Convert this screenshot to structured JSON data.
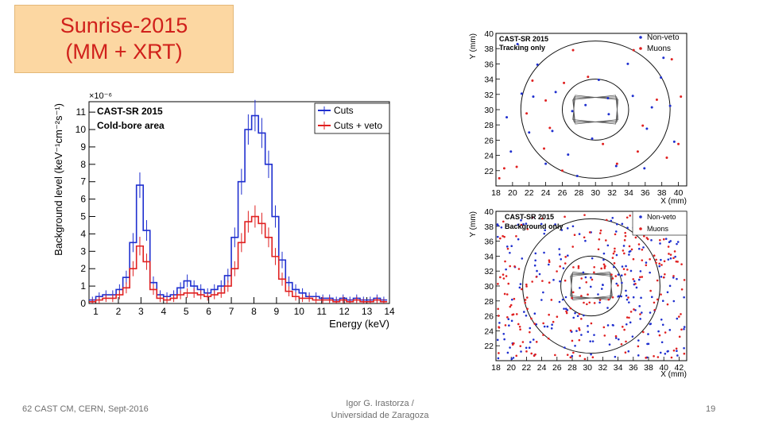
{
  "slide": {
    "title_line1": "Sunrise-2015",
    "title_line2": "(MM + XRT)",
    "footer_left": "62 CAST CM, CERN, Sept-2016",
    "footer_center_line1": "Igor G. Irastorza /",
    "footer_center_line2": "Universidad de Zaragoza",
    "page_number": "19"
  },
  "chart_data": [
    {
      "type": "line",
      "title": "CAST-SR 2015",
      "subtitle": "Cold-bore area",
      "xlabel": "Energy (keV)",
      "ylabel": "Background level (keV⁻¹cm⁻²s⁻¹)",
      "y_multiplier": "×10⁻⁶",
      "xlim": [
        0.7,
        14
      ],
      "ylim": [
        0,
        11.6
      ],
      "xticks": [
        1,
        2,
        3,
        4,
        5,
        6,
        7,
        8,
        9,
        10,
        11,
        12,
        13,
        14
      ],
      "yticks": [
        0,
        1,
        2,
        3,
        4,
        5,
        6,
        7,
        8,
        9,
        10,
        11
      ],
      "legend": [
        "Cuts",
        "Cuts + veto"
      ],
      "legend_position": "top-right",
      "colors": {
        "Cuts": "#1f2fcf",
        "Cuts + veto": "#e02020"
      },
      "x": [
        0.85,
        1.15,
        1.45,
        1.75,
        2.05,
        2.35,
        2.65,
        2.95,
        3.25,
        3.55,
        3.85,
        4.15,
        4.45,
        4.75,
        5.05,
        5.35,
        5.65,
        5.95,
        6.25,
        6.55,
        6.85,
        7.15,
        7.45,
        7.75,
        8.05,
        8.35,
        8.65,
        8.95,
        9.25,
        9.55,
        9.85,
        10.15,
        10.45,
        10.75,
        11.05,
        11.35,
        11.65,
        11.95,
        12.25,
        12.55,
        12.85,
        13.15,
        13.45,
        13.75
      ],
      "series": [
        {
          "name": "Cuts",
          "values": [
            0.2,
            0.4,
            0.5,
            0.5,
            0.8,
            1.5,
            3.5,
            6.8,
            4.2,
            1.2,
            0.5,
            0.4,
            0.5,
            0.9,
            1.3,
            1.0,
            0.8,
            0.6,
            0.8,
            1.0,
            1.6,
            3.8,
            7.0,
            10.0,
            10.8,
            9.8,
            8.0,
            5.0,
            2.5,
            1.2,
            0.8,
            0.6,
            0.4,
            0.4,
            0.3,
            0.3,
            0.2,
            0.3,
            0.2,
            0.3,
            0.2,
            0.2,
            0.3,
            0.2
          ]
        },
        {
          "name": "Cuts + veto",
          "values": [
            0.1,
            0.2,
            0.3,
            0.3,
            0.5,
            0.9,
            2.0,
            3.3,
            2.4,
            0.8,
            0.3,
            0.2,
            0.3,
            0.5,
            0.6,
            0.6,
            0.5,
            0.4,
            0.5,
            0.6,
            1.0,
            2.0,
            3.5,
            4.7,
            5.0,
            4.6,
            3.8,
            2.7,
            1.4,
            0.7,
            0.4,
            0.3,
            0.3,
            0.2,
            0.2,
            0.2,
            0.1,
            0.2,
            0.1,
            0.2,
            0.1,
            0.1,
            0.2,
            0.1
          ]
        }
      ]
    },
    {
      "type": "scatter",
      "title": "CAST-SR 2015",
      "subtitle": "Tracking only",
      "xlabel": "X (mm)",
      "ylabel": "Y (mm)",
      "xlim": [
        18,
        41
      ],
      "ylim": [
        20,
        40
      ],
      "xticks": [
        18,
        20,
        22,
        24,
        26,
        28,
        30,
        32,
        34,
        36,
        38,
        40
      ],
      "yticks": [
        22,
        24,
        26,
        28,
        30,
        32,
        34,
        36,
        38,
        40
      ],
      "legend": [
        "Non-veto",
        "Muons"
      ],
      "legend_position": "top-right",
      "colors": {
        "Non-veto": "#1f2fcf",
        "Muons": "#e02020"
      },
      "circles": [
        {
          "cx": 30,
          "cy": 30,
          "r": 4
        },
        {
          "cx": 30,
          "cy": 30,
          "r": 9
        }
      ],
      "series": [
        {
          "name": "Non-veto",
          "points": [
            [
              25.2,
              32.3
            ],
            [
              34.5,
              31.8
            ],
            [
              27.2,
              29.8
            ],
            [
              28.8,
              30.6
            ],
            [
              31.6,
              29.4
            ],
            [
              36.2,
              27.5
            ],
            [
              24.8,
              27.2
            ],
            [
              22.5,
              31.7
            ],
            [
              37.9,
              34.2
            ],
            [
              19.8,
              24.5
            ],
            [
              20.6,
              38.6
            ],
            [
              38.2,
              36.8
            ],
            [
              32.5,
              22.6
            ],
            [
              29.6,
              26.2
            ],
            [
              21.1,
              32.1
            ],
            [
              26.7,
              24.1
            ],
            [
              35.9,
              22.3
            ],
            [
              23.0,
              35.9
            ],
            [
              33.9,
              36.0
            ],
            [
              30.4,
              33.9
            ],
            [
              39.5,
              25.8
            ],
            [
              27.8,
              21.3
            ],
            [
              36.8,
              30.3
            ],
            [
              19.3,
              29.0
            ],
            [
              24.0,
              22.9
            ],
            [
              31.5,
              31.5
            ],
            [
              39.0,
              30.5
            ],
            [
              22.0,
              27.0
            ]
          ]
        },
        {
          "name": "Muons",
          "points": [
            [
              18.4,
              21.0
            ],
            [
              19.0,
              22.3
            ],
            [
              20.5,
              22.5
            ],
            [
              23.8,
              24.9
            ],
            [
              27.3,
              37.8
            ],
            [
              24.5,
              27.6
            ],
            [
              29.1,
              34.3
            ],
            [
              34.6,
              37.8
            ],
            [
              35.7,
              27.9
            ],
            [
              37.4,
              31.3
            ],
            [
              39.2,
              36.6
            ],
            [
              40.0,
              25.5
            ],
            [
              32.6,
              22.9
            ],
            [
              22.4,
              33.8
            ],
            [
              26.0,
              22.0
            ],
            [
              38.6,
              23.7
            ],
            [
              30.9,
              25.5
            ],
            [
              21.7,
              29.5
            ],
            [
              35.1,
              24.5
            ],
            [
              26.2,
              33.5
            ],
            [
              40.3,
              31.7
            ],
            [
              24.0,
              31.2
            ]
          ]
        }
      ]
    },
    {
      "type": "scatter",
      "title": "CAST-SR 2015",
      "subtitle": "Background only",
      "xlabel": "X (mm)",
      "ylabel": "Y (mm)",
      "xlim": [
        18,
        43
      ],
      "ylim": [
        20,
        40
      ],
      "xticks": [
        18,
        20,
        22,
        24,
        26,
        28,
        30,
        32,
        34,
        36,
        38,
        40,
        42
      ],
      "yticks": [
        22,
        24,
        26,
        28,
        30,
        32,
        34,
        36,
        38,
        40
      ],
      "legend": [
        "Non-veto",
        "Muons"
      ],
      "legend_position": "top-right",
      "colors": {
        "Non-veto": "#1f2fcf",
        "Muons": "#e02020"
      },
      "circles": [
        {
          "cx": 30.5,
          "cy": 30,
          "r": 4
        },
        {
          "cx": 30.5,
          "cy": 30,
          "r": 9
        }
      ],
      "random_points": {
        "Non-veto": 230,
        "Muons": 230,
        "seed": 7
      }
    }
  ]
}
